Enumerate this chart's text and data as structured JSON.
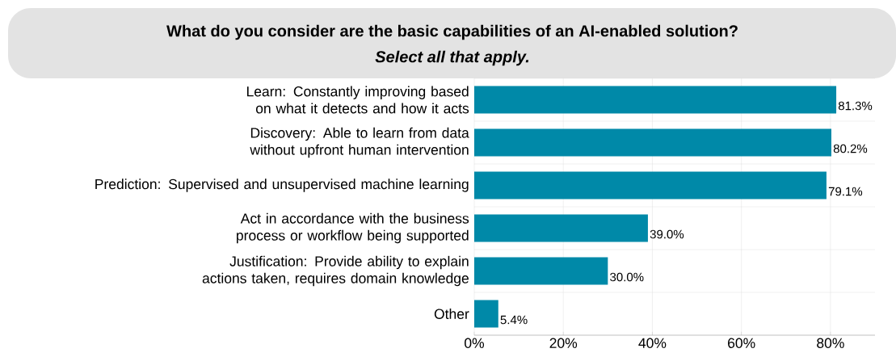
{
  "chart_data": {
    "type": "bar",
    "orientation": "horizontal",
    "title": "What do you consider are the basic capabilities of an AI-enabled solution?",
    "subtitle": "Select all that apply.",
    "categories": [
      "Learn: Constantly improving based on what it detects and how it acts",
      "Discovery: Able to learn from data without upfront human intervention",
      "Prediction: Supervised and unsupervised machine learning",
      "Act in accordance with the business process or workflow being supported",
      "Justification: Provide ability to explain actions taken, requires domain knowledge",
      "Other"
    ],
    "values": [
      81.3,
      80.2,
      79.1,
      39.0,
      30.0,
      5.4
    ],
    "value_labels": [
      "81.3%",
      "80.2%",
      "79.1%",
      "39.0%",
      "30.0%",
      "5.4%"
    ],
    "color": "#0089a8",
    "xlim": [
      0,
      90
    ],
    "xticks": [
      {
        "value": 0,
        "label": "0%"
      },
      {
        "value": 20,
        "label": "20%"
      },
      {
        "value": 40,
        "label": "40%"
      },
      {
        "value": 60,
        "label": "60%"
      },
      {
        "value": 80,
        "label": "80%"
      }
    ],
    "grid": true
  }
}
